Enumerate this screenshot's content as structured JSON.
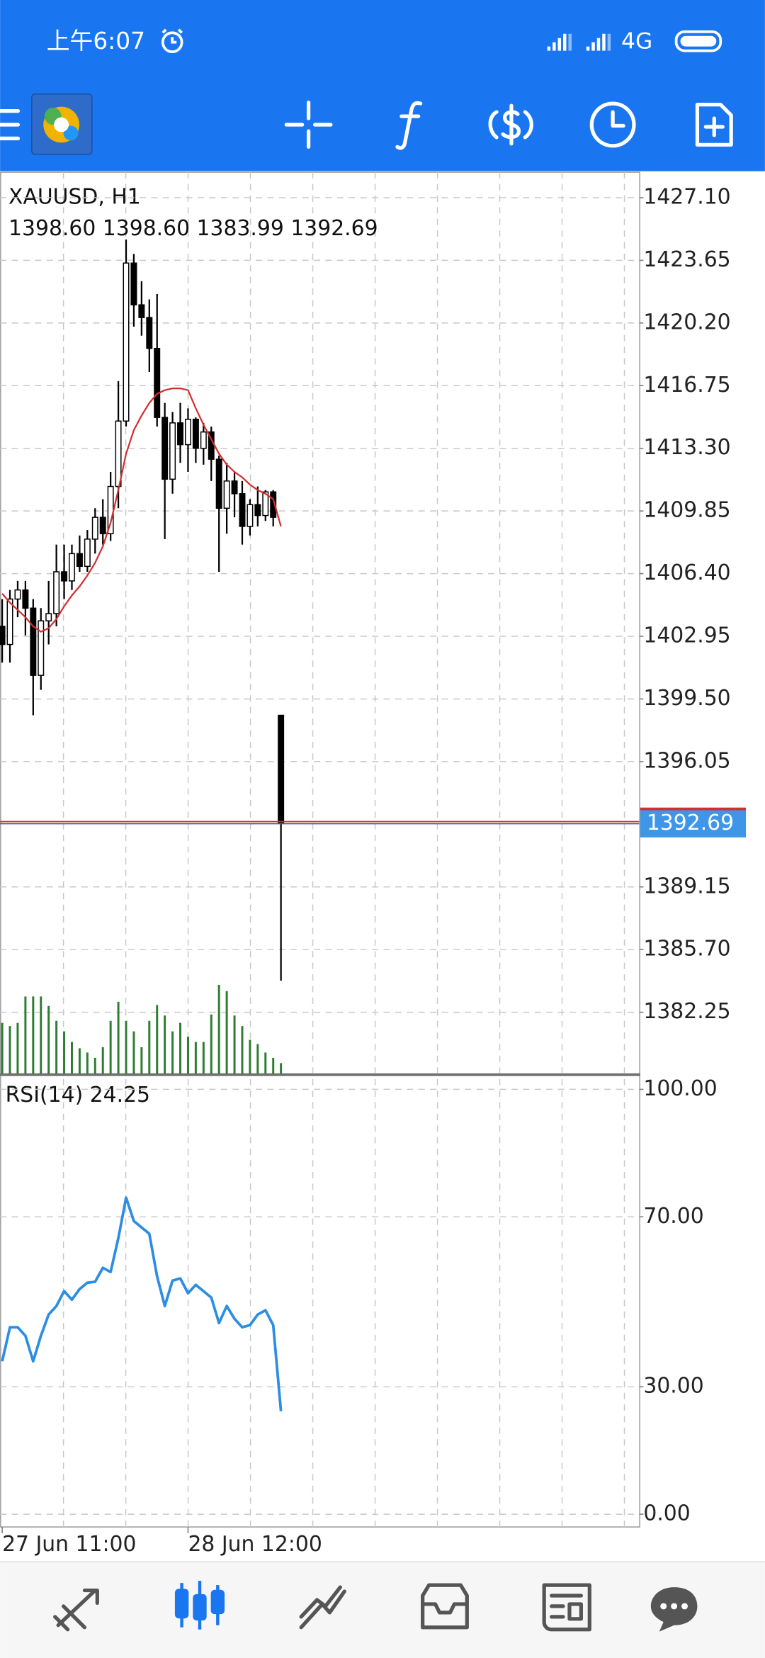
{
  "status_bar": {
    "time": "上午6:07",
    "network": "4G"
  },
  "chart_data": [
    {
      "type": "candlestick",
      "title": "XAUUSD, H1",
      "subtitle": "1398.60 1398.60 1383.99 1392.69",
      "categories": [
        "27 Jun 11:00",
        null,
        null,
        null,
        null,
        null,
        null,
        null,
        null,
        null,
        null,
        null,
        null,
        null,
        null,
        null,
        null,
        null,
        null,
        null,
        null,
        null,
        null,
        null,
        "28 Jun 12:00",
        null,
        null,
        null,
        null,
        null,
        null,
        null,
        null,
        null,
        null,
        null,
        null
      ],
      "open": [
        1403.5,
        1402.5,
        1405,
        1405.5,
        1404.5,
        1400.8,
        1403.8,
        1404.2,
        1406.5,
        1406,
        1407.5,
        1406.8,
        1408.3,
        1409.5,
        1408.6,
        1411.2,
        1414.8,
        1423.5,
        1421.2,
        1420.5,
        1418.8,
        1415,
        1411.6,
        1414.7,
        1413.5,
        1414.9,
        1413.3,
        1414.2,
        1412.7,
        1410,
        1411.5,
        1410.8,
        1409,
        1410.2,
        1409.6,
        1410.9,
        1398.6
      ],
      "high": [
        1405,
        1405.5,
        1406,
        1406,
        1405,
        1404.5,
        1406,
        1408,
        1408,
        1408,
        1408.5,
        1408.8,
        1410,
        1410.5,
        1412,
        1417,
        1424.8,
        1424,
        1422.5,
        1421.5,
        1421.8,
        1415.8,
        1415.3,
        1415.8,
        1415.5,
        1415,
        1414.7,
        1414.5,
        1412.9,
        1412.5,
        1412,
        1411.5,
        1410.5,
        1411.2,
        1411,
        1411,
        1398.6
      ],
      "low": [
        1401.5,
        1401.5,
        1404,
        1403,
        1398.6,
        1400,
        1402.5,
        1403.5,
        1405,
        1405.5,
        1406.5,
        1406.5,
        1407.5,
        1408,
        1408.2,
        1410,
        1414.5,
        1420,
        1419.5,
        1417.5,
        1414.5,
        1408.3,
        1410.8,
        1412.5,
        1412,
        1412.5,
        1412.4,
        1411.5,
        1406.5,
        1408.6,
        1409.5,
        1408,
        1408.5,
        1409,
        1409.3,
        1409,
        1383.99
      ],
      "close": [
        1402.5,
        1405,
        1405.5,
        1404.5,
        1400.8,
        1403.8,
        1404.2,
        1406.5,
        1406,
        1407.5,
        1406.8,
        1408.3,
        1409.5,
        1408.6,
        1411.2,
        1414.8,
        1423.5,
        1421.2,
        1420.5,
        1418.8,
        1415,
        1411.6,
        1414.7,
        1413.5,
        1414.9,
        1413.3,
        1414.2,
        1412.7,
        1410,
        1411.5,
        1410.8,
        1409,
        1410.2,
        1409.6,
        1410.9,
        1409.5,
        1392.69
      ],
      "up_color": "#ffffff",
      "down_color": "#000000",
      "moving_average": {
        "color": "#d32f2f",
        "values": [
          1405.3,
          1404.8,
          1404.4,
          1404,
          1403.5,
          1403.2,
          1403.4,
          1403.9,
          1404.6,
          1405.2,
          1405.7,
          1406.3,
          1407,
          1407.9,
          1409.2,
          1411,
          1413,
          1414.3,
          1415.1,
          1415.8,
          1416.3,
          1416.5,
          1416.6,
          1416.6,
          1416.5,
          1415.5,
          1414.6,
          1413.8,
          1413,
          1412.4,
          1412,
          1411.7,
          1411.3,
          1411,
          1410.8,
          1410.5,
          1409
        ]
      },
      "volume": {
        "color": "#2e7d32",
        "values": [
          480,
          450,
          480,
          730,
          730,
          730,
          640,
          500,
          400,
          300,
          240,
          200,
          150,
          250,
          500,
          680,
          500,
          400,
          250,
          500,
          650,
          550,
          400,
          480,
          350,
          300,
          300,
          560,
          840,
          780,
          550,
          450,
          320,
          280,
          200,
          150,
          100
        ]
      },
      "current_price": {
        "value": 1392.69,
        "label": "1392.69"
      },
      "ylim": [
        1378.87,
        1428.5
      ],
      "yticks": [
        {
          "value": 1427.1,
          "label": "1427.10"
        },
        1423.65,
        {
          "value": 1420.2,
          "label": "1420.20"
        },
        1416.75,
        {
          "value": 1413.3,
          "label": "1413.30"
        },
        1409.85,
        {
          "value": 1406.4,
          "label": "1406.40"
        },
        1402.95,
        {
          "value": 1399.5,
          "label": "1399.50"
        },
        1396.05,
        1389.15,
        {
          "value": 1385.7,
          "label": "1385.70"
        },
        1382.25
      ],
      "grid": true
    },
    {
      "type": "line",
      "title": "RSI(14) 24.25",
      "color": "#2b8de3",
      "values": [
        36,
        44,
        44,
        42,
        36,
        42,
        47,
        49,
        52.5,
        50.5,
        53,
        54.5,
        54.7,
        58,
        57,
        65,
        74.5,
        69,
        67.5,
        66,
        56,
        49,
        55,
        55.5,
        52,
        54,
        52.5,
        51,
        45,
        49,
        46,
        44,
        44.5,
        47,
        48,
        44.5,
        24.25
      ],
      "ylim": [
        -3,
        103.2
      ],
      "yticks": [
        {
          "value": 100,
          "label": "100.00"
        },
        {
          "value": 70,
          "label": "70.00"
        },
        {
          "value": 30,
          "label": "30.00"
        },
        {
          "value": 0,
          "label": "0.00"
        }
      ],
      "grid": true
    }
  ]
}
